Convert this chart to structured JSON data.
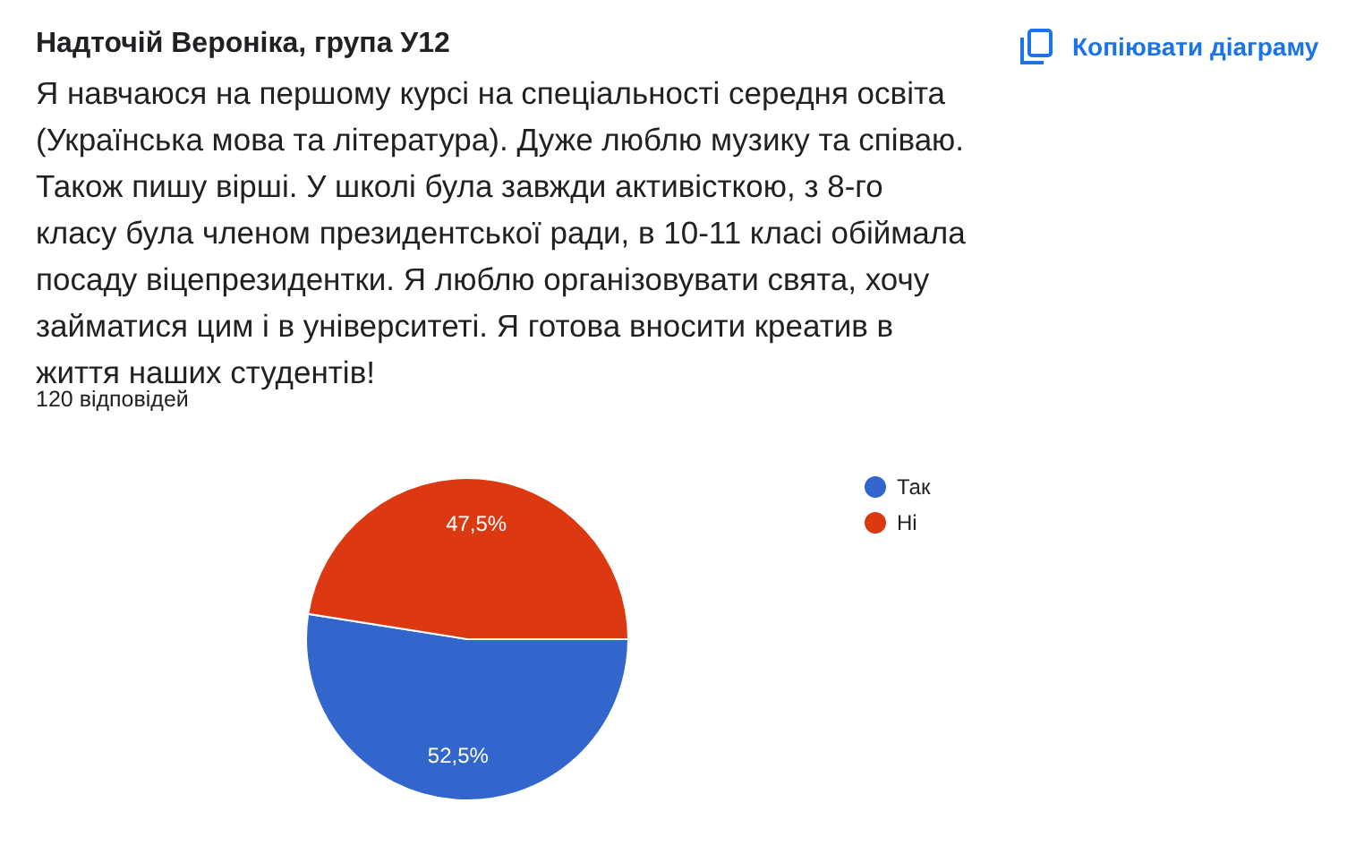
{
  "chart_data": {
    "type": "pie",
    "title": "Надточій Вероніка, група У12",
    "subtitle": "Я навчаюся на першому курсі на спеціальності середня освіта (Українська мова та література). Дуже люблю музику та співаю. Також пишу вірші. У школі була завжди активісткою, з 8-го класу була членом президентської ради, в 10-11 класі обіймала посаду віцепрезидентки. Я люблю організовувати свята, хочу займатися цим і в університеті. Я готова вносити креатив в життя наших студентів!",
    "annotations": [
      "120 відповідей",
      "Копіювати діаграму"
    ],
    "categories": [
      "Так",
      "Ні"
    ],
    "values": [
      52.5,
      47.5
    ],
    "colors": [
      "#3366cc",
      "#dc3912"
    ],
    "value_labels": [
      "52,5%",
      "47,5%"
    ],
    "legend": "right"
  }
}
